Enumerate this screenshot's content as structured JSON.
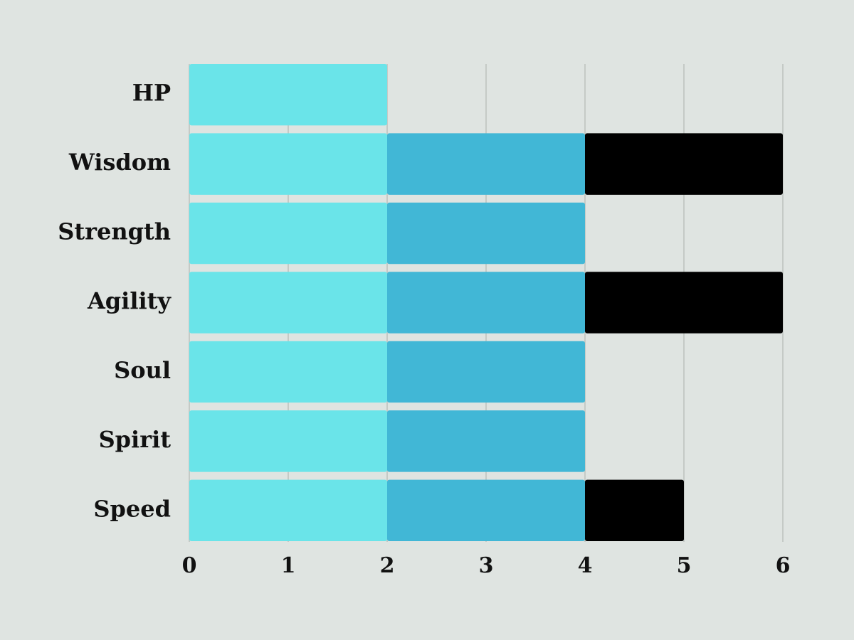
{
  "chart_data": {
    "type": "bar",
    "orientation": "horizontal",
    "stacked": true,
    "categories": [
      "HP",
      "Wisdom",
      "Strength",
      "Agility",
      "Soul",
      "Spirit",
      "Speed"
    ],
    "series": [
      {
        "color": "#6ae4e9",
        "values": [
          2,
          2,
          2,
          2,
          2,
          2,
          2
        ]
      },
      {
        "color": "#41b7d6",
        "values": [
          null,
          2,
          2,
          2,
          2,
          2,
          2
        ]
      },
      {
        "color": "#000000",
        "values": [
          null,
          2,
          null,
          2,
          null,
          null,
          1
        ]
      }
    ],
    "xlim": [
      0,
      6
    ],
    "xticks": [
      0,
      1,
      2,
      3,
      4,
      5,
      6
    ],
    "grid": true
  }
}
